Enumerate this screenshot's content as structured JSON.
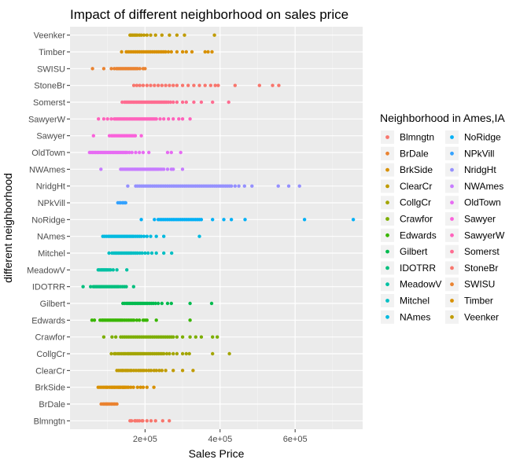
{
  "chart_data": {
    "type": "scatter",
    "title": "Impact of different neighborhood on sales price",
    "xlabel": "Sales Price",
    "ylabel": "different neighborhood",
    "xlim": [
      0,
      780000
    ],
    "x_ticks": [
      200000,
      400000,
      600000
    ],
    "x_tick_labels": [
      "2e+05",
      "4e+05",
      "6e+05"
    ],
    "grid": true,
    "legend": {
      "title": "Neighborhood in Ames,IA",
      "placement": "right",
      "columns": 2
    },
    "categories": [
      "Blmngtn",
      "BrDale",
      "BrkSide",
      "ClearCr",
      "CollgCr",
      "Crawfor",
      "Edwards",
      "Gilbert",
      "IDOTRR",
      "MeadowV",
      "Mitchel",
      "NAmes",
      "NoRidge",
      "NPkVill",
      "NridgHt",
      "NWAmes",
      "OldTown",
      "Sawyer",
      "SawyerW",
      "Somerst",
      "StoneBr",
      "SWISU",
      "Timber",
      "Veenker"
    ],
    "colors": [
      "#F8766D",
      "#EA8331",
      "#D89000",
      "#C09B00",
      "#A3A500",
      "#7CAE00",
      "#39B600",
      "#00BB4E",
      "#00BF7D",
      "#00C1A3",
      "#00BFC4",
      "#00BAE0",
      "#00B0F6",
      "#35A2FF",
      "#9590FF",
      "#C77CFF",
      "#E76BF3",
      "#FA62DB",
      "#FF62BC",
      "#FF6C91",
      "#F8766D",
      "#EA8331",
      "#D89000",
      "#C09B00"
    ],
    "series": [
      {
        "name": "Blmngtn",
        "x": [
          159895,
          164000,
          172500,
          175000,
          180000,
          185000,
          192000,
          194000,
          205000,
          216000,
          228000,
          246990,
          264561
        ]
      },
      {
        "name": "BrDale",
        "x": [
          83000,
          88000,
          91000,
          95000,
          97000,
          99500,
          102000,
          106000,
          110000,
          113000,
          117000,
          120000,
          125000
        ]
      },
      {
        "name": "BrkSide",
        "x": [
          75000,
          80000,
          85000,
          89500,
          94000,
          98000,
          100000,
          105000,
          109000,
          112000,
          115000,
          118000,
          120000,
          124000,
          127500,
          130000,
          133000,
          135000,
          139000,
          141000,
          143000,
          145000,
          148000,
          152000,
          156000,
          162000,
          169000,
          180000,
          188000,
          195000,
          205000,
          223500
        ]
      },
      {
        "name": "ClearCr",
        "x": [
          125000,
          130000,
          135000,
          139000,
          142000,
          147000,
          151000,
          155000,
          160000,
          164000,
          170000,
          176000,
          182000,
          187000,
          192000,
          197000,
          203000,
          210000,
          216000,
          224000,
          230000,
          238000,
          245000,
          255000,
          275000,
          300000,
          328000
        ]
      },
      {
        "name": "CollgCr",
        "x": [
          110000,
          118000,
          122000,
          128000,
          133000,
          138000,
          143000,
          147000,
          152000,
          156000,
          160000,
          164000,
          168000,
          172000,
          176000,
          180000,
          184000,
          188000,
          192000,
          196000,
          200000,
          205000,
          210000,
          215000,
          220000,
          225000,
          230000,
          235000,
          240000,
          245000,
          250000,
          258000,
          265000,
          275000,
          285000,
          300000,
          310000,
          318000,
          380000,
          424870
        ]
      },
      {
        "name": "Crawfor",
        "x": [
          90000,
          112000,
          122000,
          135000,
          140000,
          145000,
          150000,
          155000,
          160000,
          165000,
          170000,
          175000,
          180000,
          185000,
          190000,
          195000,
          200000,
          205000,
          210000,
          215000,
          220000,
          225000,
          230000,
          235000,
          240000,
          245000,
          250000,
          255000,
          260000,
          265000,
          270000,
          275000,
          285000,
          300000,
          320000,
          335000,
          350000,
          380000,
          392500
        ]
      },
      {
        "name": "Edwards",
        "x": [
          58500,
          65000,
          80000,
          85000,
          88000,
          92000,
          96000,
          100000,
          104000,
          108000,
          112000,
          116000,
          120000,
          124000,
          128000,
          132000,
          136000,
          140000,
          145000,
          150000,
          155000,
          160000,
          165000,
          170000,
          178000,
          185000,
          195000,
          200000,
          205000,
          230000,
          320000
        ]
      },
      {
        "name": "Gilbert",
        "x": [
          141000,
          146000,
          151000,
          155000,
          159000,
          163000,
          167000,
          171000,
          175000,
          179000,
          183000,
          187000,
          191000,
          195000,
          199000,
          203000,
          207000,
          212000,
          217000,
          222000,
          228000,
          235000,
          245000,
          260000,
          270000,
          320000,
          377500
        ]
      },
      {
        "name": "IDOTRR",
        "x": [
          34900,
          55000,
          62000,
          66000,
          70000,
          74000,
          78000,
          82000,
          86000,
          90000,
          94000,
          98000,
          102000,
          106000,
          110000,
          114000,
          118000,
          122000,
          126000,
          130000,
          135000,
          140000,
          145000,
          150000,
          169500
        ]
      },
      {
        "name": "MeadowV",
        "x": [
          75000,
          78000,
          82000,
          85000,
          88000,
          91000,
          94000,
          97000,
          100000,
          104000,
          108000,
          115000,
          125000,
          151400
        ]
      },
      {
        "name": "Mitchel",
        "x": [
          104000,
          112000,
          117000,
          121000,
          125000,
          129000,
          133000,
          137000,
          141000,
          145000,
          149000,
          153000,
          157000,
          161000,
          165000,
          170000,
          175000,
          180000,
          186000,
          192000,
          200000,
          208000,
          218000,
          230000,
          250000,
          271000
        ]
      },
      {
        "name": "NAmes",
        "x": [
          87500,
          92000,
          97000,
          102000,
          106000,
          110000,
          114000,
          118000,
          122000,
          126000,
          130000,
          134000,
          138000,
          142000,
          146000,
          150000,
          154000,
          158000,
          162000,
          166000,
          170000,
          175000,
          180000,
          185000,
          190000,
          197000,
          205000,
          215000,
          230000,
          250000,
          345000
        ]
      },
      {
        "name": "NoRidge",
        "x": [
          190000,
          225000,
          235000,
          240000,
          245000,
          250000,
          255000,
          260000,
          265000,
          270000,
          275000,
          280000,
          285000,
          290000,
          295000,
          300000,
          305000,
          310000,
          315000,
          320000,
          325000,
          330000,
          335000,
          340000,
          345000,
          350000,
          380000,
          410000,
          430000,
          466500,
          625000,
          755000
        ]
      },
      {
        "name": "NPkVill",
        "x": [
          127500,
          132000,
          135000,
          140000,
          142000,
          146000,
          148500
        ]
      },
      {
        "name": "NridgHt",
        "x": [
          154000,
          175000,
          180000,
          185000,
          190000,
          195000,
          200000,
          205000,
          210000,
          215000,
          220000,
          225000,
          230000,
          235000,
          240000,
          245000,
          250000,
          255000,
          260000,
          265000,
          270000,
          275000,
          280000,
          285000,
          290000,
          295000,
          300000,
          305000,
          310000,
          315000,
          320000,
          325000,
          330000,
          335000,
          340000,
          345000,
          350000,
          355000,
          360000,
          365000,
          370000,
          375000,
          380000,
          385000,
          390000,
          395000,
          400000,
          405000,
          410000,
          415000,
          420000,
          425000,
          430000,
          440000,
          450000,
          465000,
          485000,
          555000,
          582933,
          611657
        ]
      },
      {
        "name": "NWAmes",
        "x": [
          82500,
          135000,
          139000,
          143000,
          147000,
          151000,
          155000,
          159000,
          163000,
          167000,
          171000,
          175000,
          179000,
          183000,
          187000,
          191000,
          195000,
          199000,
          203000,
          207000,
          211000,
          215000,
          219000,
          223000,
          227000,
          231000,
          235000,
          240000,
          245000,
          250000,
          260000,
          270000,
          275000,
          299800
        ]
      },
      {
        "name": "OldTown",
        "x": [
          52000,
          56000,
          60000,
          64000,
          68000,
          72000,
          76000,
          80000,
          84000,
          88000,
          92000,
          96000,
          100000,
          104000,
          108000,
          112000,
          116000,
          120000,
          124000,
          128000,
          132000,
          136000,
          140000,
          144000,
          148000,
          152000,
          158000,
          165000,
          175000,
          185000,
          195000,
          210000,
          260000,
          270000,
          295000
        ]
      },
      {
        "name": "Sawyer",
        "x": [
          62383,
          105000,
          110000,
          114000,
          118000,
          122000,
          126000,
          130000,
          134000,
          138000,
          142000,
          146000,
          150000,
          154000,
          158000,
          162000,
          166000,
          170000,
          174000,
          190000
        ]
      },
      {
        "name": "SawyerW",
        "x": [
          76000,
          90000,
          100000,
          110000,
          118000,
          122000,
          126000,
          130000,
          134000,
          138000,
          142000,
          146000,
          150000,
          154000,
          158000,
          162000,
          166000,
          170000,
          174000,
          178000,
          182000,
          186000,
          190000,
          194000,
          198000,
          202000,
          206000,
          210000,
          214000,
          218000,
          222000,
          226000,
          230000,
          240000,
          250000,
          262500,
          275000,
          290000,
          300000,
          320000
        ]
      },
      {
        "name": "Somerst",
        "x": [
          139000,
          145000,
          149000,
          153000,
          157000,
          161000,
          165000,
          169000,
          173000,
          177000,
          181000,
          185000,
          189000,
          193000,
          197000,
          201000,
          205000,
          209000,
          213000,
          217000,
          221000,
          225000,
          229000,
          233000,
          237000,
          241000,
          245000,
          249000,
          253000,
          257000,
          262000,
          268000,
          275000,
          285000,
          300000,
          310000,
          330000,
          350000,
          380000,
          423000
        ]
      },
      {
        "name": "StoneBr",
        "x": [
          170000,
          178000,
          186000,
          195000,
          205000,
          215000,
          225000,
          235000,
          245000,
          255000,
          265000,
          275000,
          285000,
          300000,
          315000,
          330000,
          345000,
          360000,
          375000,
          387000,
          395000,
          440000,
          505000,
          540000,
          556581
        ]
      },
      {
        "name": "SWISU",
        "x": [
          60000,
          90000,
          110000,
          118000,
          124000,
          128000,
          132000,
          136000,
          140000,
          144000,
          148000,
          152000,
          156000,
          160000,
          164000,
          168000,
          172000,
          176000,
          180000,
          186000,
          195000,
          200000
        ]
      },
      {
        "name": "Timber",
        "x": [
          137500,
          150000,
          155000,
          160000,
          165000,
          170000,
          175000,
          180000,
          185000,
          190000,
          195000,
          200000,
          205000,
          210000,
          215000,
          220000,
          225000,
          230000,
          235000,
          240000,
          245000,
          250000,
          255000,
          262000,
          270000,
          285000,
          300000,
          310000,
          325000,
          360000,
          368000,
          378500
        ]
      },
      {
        "name": "Veenker",
        "x": [
          160000,
          163000,
          167000,
          171000,
          175000,
          179000,
          185000,
          190000,
          197000,
          205000,
          215000,
          228000,
          245000,
          265000,
          285000,
          305000,
          385000
        ]
      }
    ]
  }
}
